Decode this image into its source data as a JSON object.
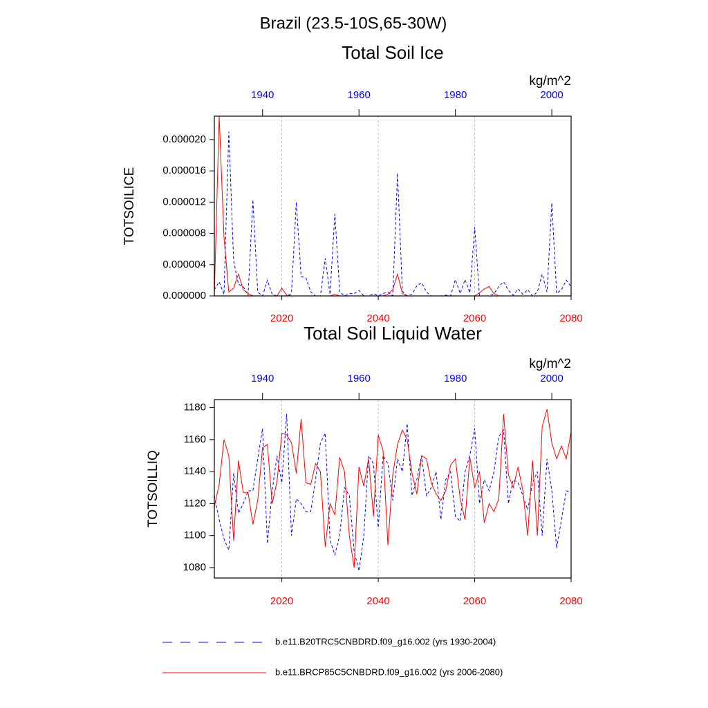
{
  "title": "Brazil (23.5-10S,65-30W)",
  "chart_data": [
    {
      "type": "line",
      "title": "Total Soil Ice",
      "ylabel": "TOTSOILICE",
      "units": "kg/m^2",
      "xlim": [
        2006,
        2080
      ],
      "xticks": [
        2020,
        2040,
        2060,
        2080
      ],
      "xtick_color": "red",
      "x2lim": [
        1930,
        2004
      ],
      "x2ticks": [
        1940,
        1960,
        1980,
        2000
      ],
      "x2tick_color": "blue",
      "ylim": [
        0,
        2.3e-05
      ],
      "yticks": [
        {
          "value": 0,
          "label": "0.000000"
        },
        {
          "value": 4e-06,
          "label": "0.000004"
        },
        {
          "value": 8e-06,
          "label": "0.000008"
        },
        {
          "value": 1.2e-05,
          "label": "0.000012"
        },
        {
          "value": 1.6e-05,
          "label": "0.000016"
        },
        {
          "value": 2e-05,
          "label": "0.000020"
        }
      ],
      "grid": true,
      "series": [
        {
          "name": "b.e11.B20TRC5CNBDRD.f09_g16.002 (yrs 1930-2004)",
          "color": "blue",
          "dash": "dashed",
          "axis": "x2",
          "x": [
            1930,
            1931,
            1932,
            1933,
            1934,
            1935,
            1936,
            1937,
            1938,
            1939,
            1940,
            1941,
            1942,
            1943,
            1944,
            1945,
            1946,
            1947,
            1948,
            1949,
            1950,
            1951,
            1952,
            1953,
            1954,
            1955,
            1956,
            1957,
            1958,
            1959,
            1960,
            1961,
            1962,
            1963,
            1964,
            1965,
            1966,
            1967,
            1968,
            1969,
            1970,
            1971,
            1972,
            1973,
            1974,
            1975,
            1976,
            1977,
            1978,
            1979,
            1980,
            1981,
            1982,
            1983,
            1984,
            1985,
            1986,
            1987,
            1988,
            1989,
            1990,
            1991,
            1992,
            1993,
            1994,
            1995,
            1996,
            1997,
            1998,
            1999,
            2000,
            2001,
            2002,
            2003,
            2004
          ],
          "values": [
            8e-07,
            1.8e-06,
            2e-07,
            2.1e-05,
            4.5e-06,
            1.5e-06,
            1.2e-06,
            1e-07,
            1.23e-05,
            5e-07,
            0,
            2e-06,
            2e-07,
            0,
            0,
            0,
            3e-07,
            1.2e-05,
            2.5e-06,
            2.3e-06,
            5e-07,
            0,
            0,
            4.8e-06,
            2e-07,
            1.05e-05,
            5e-07,
            0,
            3e-07,
            3e-07,
            7e-07,
            0,
            0,
            3e-07,
            0,
            3e-07,
            5e-07,
            0,
            1.57e-05,
            6e-07,
            0,
            2e-07,
            1.3e-06,
            1.7e-06,
            5e-07,
            0,
            0,
            0,
            1e-07,
            0,
            2.1e-06,
            3e-07,
            2.1e-06,
            4e-07,
            8.8e-06,
            0,
            0,
            0,
            3e-07,
            1.2e-06,
            1.8e-06,
            7e-07,
            1e-07,
            9e-07,
            2e-07,
            8e-07,
            0,
            5e-07,
            2.8e-06,
            5e-07,
            1.19e-05,
            3e-07,
            8e-07,
            2e-06,
            1.2e-06
          ]
        },
        {
          "name": "b.e11.BRCP85C5CNBDRD.f09_g16.002 (yrs 2006-2080)",
          "color": "red",
          "dash": "solid",
          "x": [
            2006,
            2007,
            2008,
            2009,
            2010,
            2011,
            2012,
            2013,
            2014,
            2015,
            2016,
            2017,
            2018,
            2019,
            2020,
            2021,
            2022,
            2023,
            2024,
            2025,
            2026,
            2027,
            2028,
            2029,
            2030,
            2031,
            2032,
            2033,
            2034,
            2035,
            2036,
            2037,
            2038,
            2039,
            2040,
            2041,
            2042,
            2043,
            2044,
            2045,
            2046,
            2047,
            2048,
            2049,
            2050,
            2051,
            2052,
            2053,
            2054,
            2055,
            2056,
            2057,
            2058,
            2059,
            2060,
            2061,
            2062,
            2063,
            2064,
            2065,
            2066,
            2067,
            2068,
            2069,
            2070,
            2071,
            2072,
            2073,
            2074,
            2075,
            2076,
            2077,
            2078,
            2079,
            2080
          ],
          "values": [
            0,
            2.3e-05,
            7.5e-06,
            5e-07,
            1e-06,
            2.8e-06,
            8e-07,
            3e-07,
            0,
            0,
            0,
            0,
            0,
            0,
            1e-06,
            1e-07,
            0,
            0,
            0,
            0,
            0,
            0,
            0,
            0,
            0,
            2e-07,
            0,
            0,
            0,
            0,
            0,
            0,
            0,
            0,
            0,
            0,
            2e-07,
            8e-07,
            2.8e-06,
            3e-07,
            0,
            0,
            0,
            0,
            0,
            0,
            0,
            0,
            0,
            0,
            0,
            0,
            0,
            0,
            0,
            4e-07,
            9e-07,
            1.2e-06,
            3e-07,
            0,
            0,
            0,
            0,
            0,
            0,
            0,
            0,
            0,
            0,
            0,
            0,
            0,
            0,
            0,
            0
          ]
        }
      ]
    },
    {
      "type": "line",
      "title": "Total Soil Liquid Water",
      "ylabel": "TOTSOILLIQ",
      "units": "kg/m^2",
      "xlim": [
        2006,
        2080
      ],
      "xticks": [
        2020,
        2040,
        2060,
        2080
      ],
      "xtick_color": "red",
      "x2lim": [
        1930,
        2004
      ],
      "x2ticks": [
        1940,
        1960,
        1980,
        2000
      ],
      "x2tick_color": "blue",
      "ylim": [
        1073.5,
        1185
      ],
      "yticks": [
        1080,
        1100,
        1120,
        1140,
        1160,
        1180
      ],
      "grid": true,
      "series": [
        {
          "color": "blue",
          "dash": "dashed",
          "axis": "x2",
          "x": [
            1930,
            1931,
            1932,
            1933,
            1934,
            1935,
            1936,
            1937,
            1938,
            1939,
            1940,
            1941,
            1942,
            1943,
            1944,
            1945,
            1946,
            1947,
            1948,
            1949,
            1950,
            1951,
            1952,
            1953,
            1954,
            1955,
            1956,
            1957,
            1958,
            1959,
            1960,
            1961,
            1962,
            1963,
            1964,
            1965,
            1966,
            1967,
            1968,
            1969,
            1970,
            1971,
            1972,
            1973,
            1974,
            1975,
            1976,
            1977,
            1978,
            1979,
            1980,
            1981,
            1982,
            1983,
            1984,
            1985,
            1986,
            1987,
            1988,
            1989,
            1990,
            1991,
            1992,
            1993,
            1994,
            1995,
            1996,
            1997,
            1998,
            1999,
            2000,
            2001,
            2002,
            2003,
            2004
          ],
          "values": [
            1125,
            1110,
            1098,
            1091,
            1139,
            1114,
            1120,
            1128,
            1128,
            1148,
            1167,
            1095,
            1128,
            1150,
            1133,
            1176,
            1100,
            1123,
            1120,
            1115,
            1115,
            1135,
            1158,
            1164,
            1097,
            1088,
            1100,
            1130,
            1125,
            1090,
            1078,
            1100,
            1150,
            1145,
            1105,
            1150,
            1145,
            1122,
            1148,
            1140,
            1170,
            1125,
            1135,
            1150,
            1125,
            1130,
            1140,
            1110,
            1135,
            1140,
            1112,
            1109,
            1140,
            1150,
            1167,
            1120,
            1135,
            1128,
            1140,
            1162,
            1166,
            1120,
            1135,
            1133,
            1125,
            1116,
            1133,
            1140,
            1100,
            1148,
            1128,
            1092,
            1110,
            1128,
            1127
          ]
        },
        {
          "color": "red",
          "dash": "solid",
          "x": [
            2006,
            2007,
            2008,
            2009,
            2010,
            2011,
            2012,
            2013,
            2014,
            2015,
            2016,
            2017,
            2018,
            2019,
            2020,
            2021,
            2022,
            2023,
            2024,
            2025,
            2026,
            2027,
            2028,
            2029,
            2030,
            2031,
            2032,
            2033,
            2034,
            2035,
            2036,
            2037,
            2038,
            2039,
            2040,
            2041,
            2042,
            2043,
            2044,
            2045,
            2046,
            2047,
            2048,
            2049,
            2050,
            2051,
            2052,
            2053,
            2054,
            2055,
            2056,
            2057,
            2058,
            2059,
            2060,
            2061,
            2062,
            2063,
            2064,
            2065,
            2066,
            2067,
            2068,
            2069,
            2070,
            2071,
            2072,
            2073,
            2074,
            2075,
            2076,
            2077,
            2078,
            2079,
            2080
          ],
          "values": [
            1118,
            1132,
            1160,
            1150,
            1097,
            1147,
            1127,
            1127,
            1107,
            1122,
            1155,
            1157,
            1120,
            1134,
            1164,
            1163,
            1158,
            1139,
            1173,
            1133,
            1132,
            1145,
            1140,
            1093,
            1120,
            1113,
            1149,
            1140,
            1100,
            1080,
            1143,
            1131,
            1148,
            1112,
            1163,
            1153,
            1094,
            1138,
            1157,
            1166,
            1160,
            1139,
            1126,
            1150,
            1148,
            1133,
            1126,
            1122,
            1128,
            1144,
            1148,
            1123,
            1110,
            1149,
            1130,
            1140,
            1108,
            1120,
            1115,
            1123,
            1176,
            1138,
            1130,
            1143,
            1128,
            1100,
            1147,
            1100,
            1168,
            1179,
            1158,
            1148,
            1156,
            1148,
            1165
          ]
        }
      ]
    }
  ]
}
